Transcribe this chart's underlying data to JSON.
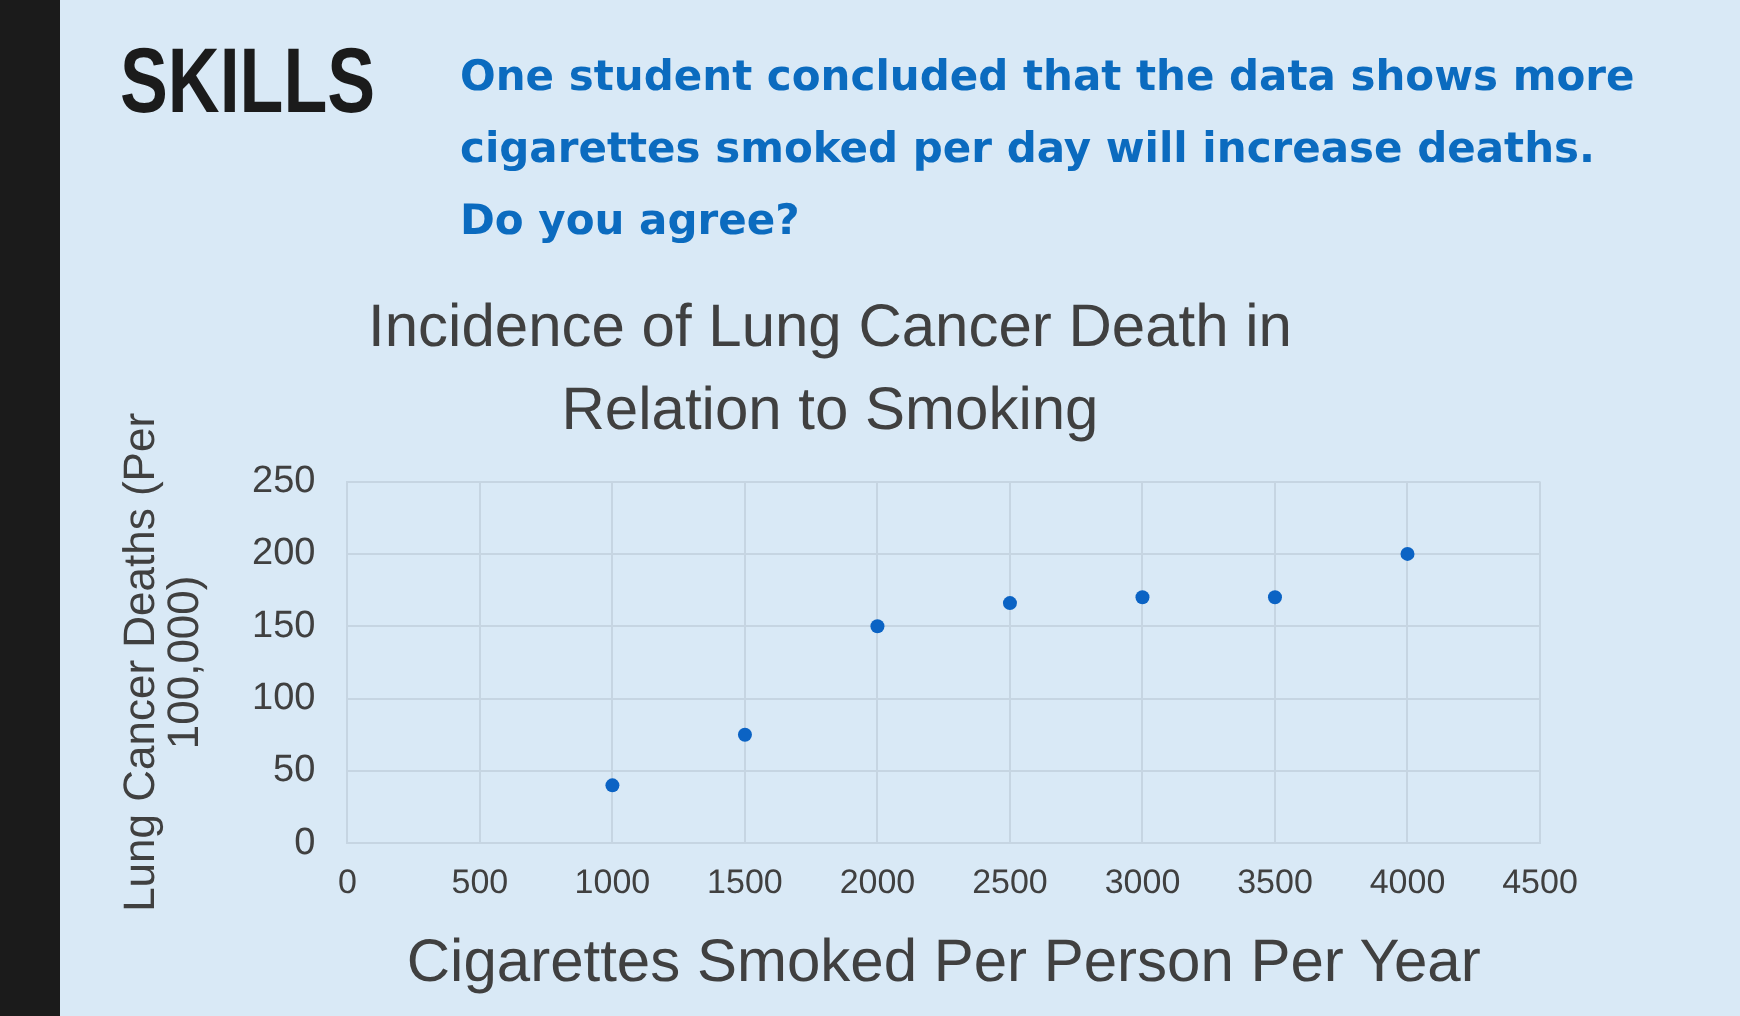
{
  "chart_data": {
    "type": "scatter",
    "title": "Incidence of Lung Cancer Death in Relation to Smoking",
    "xlabel": "Cigarettes Smoked Per Person Per Year",
    "ylabel": "Lung Cancer Deaths (Per 100,000)",
    "annotations": [
      "SKILLS",
      "One student concluded that the data shows more cigarettes smoked per day will increase deaths. Do you agree?"
    ],
    "x": [
      1000,
      1500,
      2000,
      2500,
      3000,
      3500,
      4000
    ],
    "values": [
      40,
      75,
      150,
      166,
      170,
      170,
      200
    ],
    "color": "#0b63c4",
    "xlim": [
      0,
      4500
    ],
    "xticks": [
      0,
      500,
      1000,
      1500,
      2000,
      2500,
      3000,
      3500,
      4000,
      4500
    ],
    "ylim": [
      0,
      250
    ],
    "yticks": [
      0,
      50,
      100,
      150,
      200,
      250
    ],
    "grid": true,
    "legend": false,
    "marker": "circle"
  }
}
